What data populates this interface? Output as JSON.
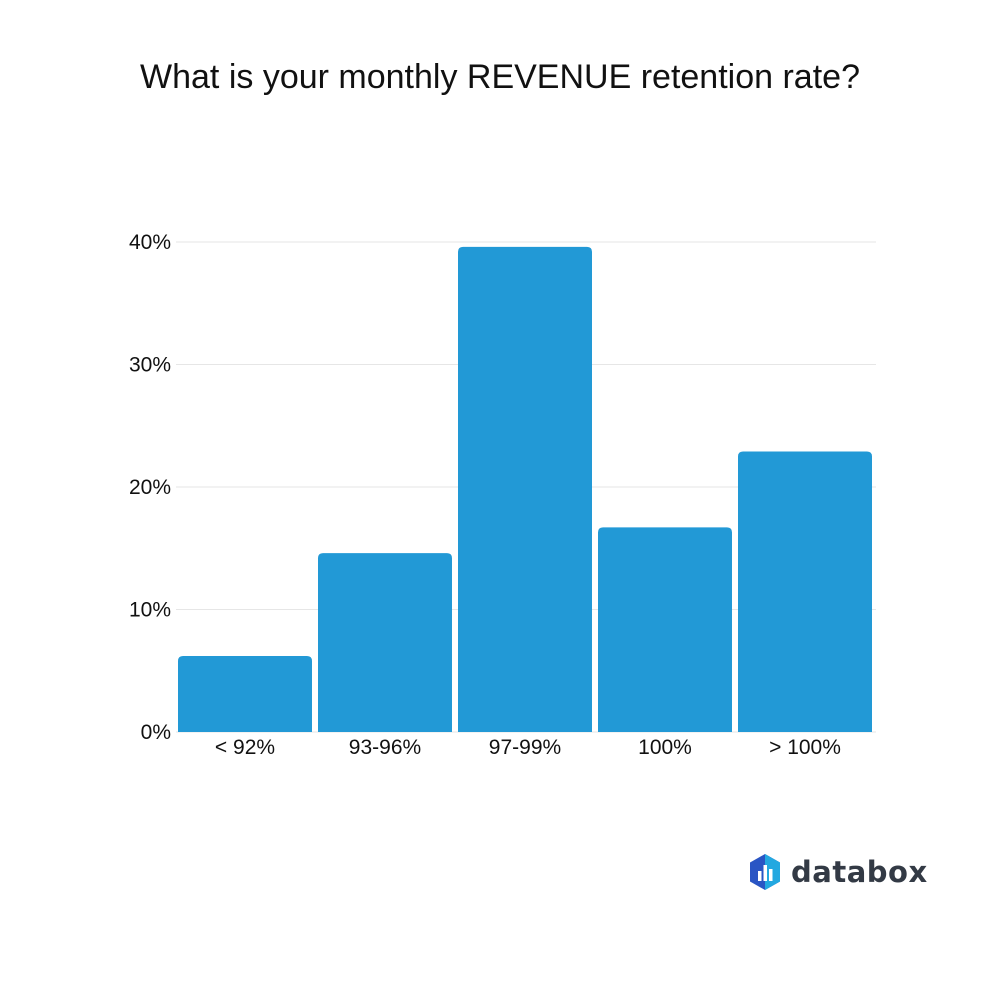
{
  "chart_data": {
    "type": "bar",
    "title": "What is your monthly REVENUE retention rate?",
    "categories": [
      "< 92%",
      "93-96%",
      "97-99%",
      "100%",
      "> 100%"
    ],
    "values": [
      6.2,
      14.6,
      39.6,
      16.7,
      22.9
    ],
    "y_ticks": [
      "0%",
      "10%",
      "20%",
      "30%",
      "40%"
    ],
    "ylim": [
      0,
      40
    ],
    "grid": true,
    "bar_color": "#2299d6",
    "grid_color": "#e6e6e6"
  },
  "brand": {
    "name": "databox",
    "colors": [
      "#1f6fd0",
      "#3a4fb8",
      "#23a8e0"
    ]
  }
}
